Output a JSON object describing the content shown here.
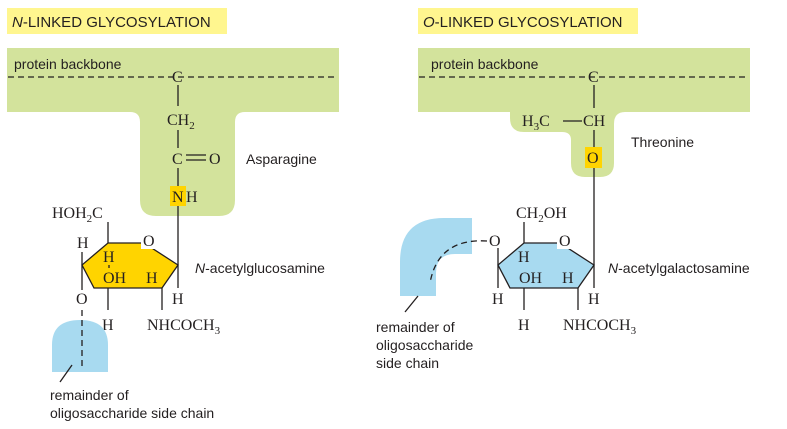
{
  "colors": {
    "protein_region": "#d3e39c",
    "title_highlight": "#fff68f",
    "glucosamine_ring": "#ffd400",
    "galactosamine_ring": "#a8daf0",
    "oligosaccharide": "#a8daf0",
    "linking_atom_highlight": "#ffd400",
    "ink": "#231f20"
  },
  "n_linked": {
    "title_prefix": "N",
    "title_rest": "-LINKED GLYCOSYLATION",
    "backbone_label": "protein backbone",
    "alpha_carbon": "C",
    "ch2": "CH",
    "ch2_sub": "2",
    "carbonyl_c": "C",
    "carbonyl_o": "O",
    "amino_acid_label": "Asparagine",
    "linking_n": "N",
    "linking_h": "H",
    "hoh2c_a": "HOH",
    "hoh2c_sub": "2",
    "hoh2c_c": "C",
    "ring_o": "O",
    "h_upper_left": "H",
    "h_inner_left": "H",
    "oh_inner": "OH",
    "h_inner_right": "H",
    "glycosidic_o": "O",
    "h_lower_left": "H",
    "h_lower_right": "H",
    "nhcoch_main": "NHCOCH",
    "nhcoch_sub": "3",
    "sugar_prefix": "N",
    "sugar_rest": "-acetylglucosamine",
    "remainder_line1": "remainder of",
    "remainder_line2": "oligosaccharide side chain"
  },
  "o_linked": {
    "title_prefix": "O",
    "title_rest": "-LINKED GLYCOSYLATION",
    "backbone_label": "protein backbone",
    "alpha_carbon": "C",
    "h3c_a": "H",
    "h3c_sub": "3",
    "h3c_c": "C",
    "ch": "CH",
    "linking_o": "O",
    "amino_acid_label": "Threonine",
    "ch2oh_a": "CH",
    "ch2oh_sub": "2",
    "ch2oh_b": "OH",
    "ring_o": "O",
    "glycosidic_o": "O",
    "h_inner_left": "H",
    "oh_inner": "OH",
    "h_inner_right": "H",
    "h_left": "H",
    "h_right": "H",
    "h_lower_left": "H",
    "nhcoch_main": "NHCOCH",
    "nhcoch_sub": "3",
    "sugar_prefix": "N",
    "sugar_rest": "-acetylgalactosamine",
    "remainder_line1": "remainder of",
    "remainder_line2": "oligosaccharide",
    "remainder_line3": "side chain"
  }
}
